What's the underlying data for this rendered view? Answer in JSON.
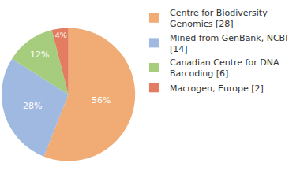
{
  "chart_data": {
    "type": "pie",
    "categories": [
      "Centre for Biodiversity Genomics [28]",
      "Mined from GenBank, NCBI [14]",
      "Canadian Centre for DNA Barcoding [6]",
      "Macrogen, Europe [2]"
    ],
    "values": [
      56,
      28,
      12,
      4
    ],
    "value_labels": [
      "56%",
      "28%",
      "12%",
      "4%"
    ],
    "colors": [
      "#f0ac74",
      "#a0b9e0",
      "#a6cd7e",
      "#e27d62"
    ],
    "data_labels": true,
    "legend": "right"
  }
}
